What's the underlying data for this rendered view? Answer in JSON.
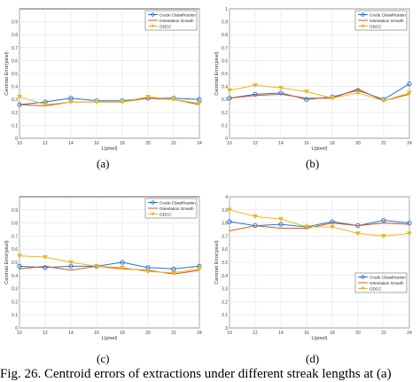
{
  "caption": "Fig. 26.  Centroid errors of extractions under different streak lengths at (a)",
  "chart_data": [
    {
      "type": "line",
      "label": "(a)",
      "xlabel": "L(pixel)",
      "ylabel": "Centroid Error(pixel)",
      "x": [
        10,
        12,
        14,
        16,
        18,
        20,
        22,
        24
      ],
      "xticks": [
        "10",
        "12",
        "14",
        "16",
        "18",
        "20",
        "22",
        "24"
      ],
      "ylim": [
        0,
        1
      ],
      "yticks": [
        "0",
        "0.1",
        "0.2",
        "0.3",
        "0.4",
        "0.5",
        "0.6",
        "0.7",
        "0.8",
        "0.9"
      ],
      "series": [
        {
          "name": "Crude Classification",
          "color": "#1f77d4",
          "marker": "circle",
          "values": [
            0.26,
            0.28,
            0.31,
            0.29,
            0.29,
            0.31,
            0.31,
            0.3
          ]
        },
        {
          "name": "Orientation Growth",
          "color": "#d9541a",
          "marker": "none",
          "values": [
            0.26,
            0.25,
            0.28,
            0.28,
            0.28,
            0.31,
            0.3,
            0.26
          ]
        },
        {
          "name": "ODCC",
          "color": "#e8b820",
          "marker": "triangle",
          "values": [
            0.32,
            0.26,
            0.28,
            0.28,
            0.28,
            0.32,
            0.3,
            0.27
          ]
        }
      ],
      "legend": "top-right"
    },
    {
      "type": "line",
      "label": "(b)",
      "xlabel": "L(pixel)",
      "ylabel": "Centroid Error(pixel)",
      "x": [
        10,
        12,
        14,
        16,
        18,
        20,
        22,
        24
      ],
      "xticks": [
        "10",
        "12",
        "14",
        "16",
        "18",
        "20",
        "22",
        "24"
      ],
      "ylim": [
        0,
        1
      ],
      "yticks": [
        "0",
        "0.1",
        "0.2",
        "0.3",
        "0.4",
        "0.5",
        "0.6",
        "0.7",
        "0.8",
        "0.9",
        "1"
      ],
      "series": [
        {
          "name": "Crude Classification",
          "color": "#1f77d4",
          "marker": "circle",
          "values": [
            0.31,
            0.34,
            0.35,
            0.3,
            0.32,
            0.37,
            0.3,
            0.42
          ]
        },
        {
          "name": "Orientation Growth",
          "color": "#d9541a",
          "marker": "none",
          "values": [
            0.31,
            0.33,
            0.34,
            0.31,
            0.31,
            0.38,
            0.29,
            0.34
          ]
        },
        {
          "name": "ODCC",
          "color": "#e8b820",
          "marker": "triangle",
          "values": [
            0.37,
            0.41,
            0.39,
            0.36,
            0.31,
            0.35,
            0.29,
            0.35
          ]
        }
      ],
      "legend": "top-right"
    },
    {
      "type": "line",
      "label": "(c)",
      "xlabel": "L(pixel)",
      "ylabel": "Centroid Error(pixel)",
      "x": [
        10,
        12,
        14,
        16,
        18,
        20,
        22,
        24
      ],
      "xticks": [
        "10",
        "12",
        "14",
        "16",
        "18",
        "20",
        "22",
        "24"
      ],
      "ylim": [
        0,
        1
      ],
      "yticks": [
        "0",
        "0.1",
        "0.2",
        "0.3",
        "0.4",
        "0.5",
        "0.6",
        "0.7",
        "0.8",
        "0.9"
      ],
      "series": [
        {
          "name": "Crude Classification",
          "color": "#1f77d4",
          "marker": "circle",
          "values": [
            0.47,
            0.46,
            0.47,
            0.47,
            0.5,
            0.46,
            0.45,
            0.47
          ]
        },
        {
          "name": "Orientation Growth",
          "color": "#d9541a",
          "marker": "none",
          "values": [
            0.45,
            0.47,
            0.44,
            0.47,
            0.45,
            0.44,
            0.41,
            0.44
          ]
        },
        {
          "name": "ODCC",
          "color": "#e8b820",
          "marker": "triangle",
          "values": [
            0.55,
            0.54,
            0.5,
            0.47,
            0.46,
            0.43,
            0.42,
            0.45
          ]
        }
      ],
      "legend": "top-right"
    },
    {
      "type": "line",
      "label": "(d)",
      "xlabel": "L(pixel)",
      "ylabel": "Centroid Error(pixel)",
      "x": [
        10,
        12,
        14,
        16,
        18,
        20,
        22,
        24
      ],
      "xticks": [
        "10",
        "12",
        "14",
        "16",
        "18",
        "20",
        "22",
        "24"
      ],
      "ylim": [
        3,
        4
      ],
      "yticks": [
        "3",
        "3.1",
        "3.2",
        "3.3",
        "3.4",
        "3.5",
        "3.6",
        "3.7",
        "3.8",
        "3.9",
        "4"
      ],
      "series": [
        {
          "name": "Crude Classification",
          "color": "#1f77d4",
          "marker": "circle",
          "values": [
            3.81,
            3.78,
            3.79,
            3.77,
            3.81,
            3.78,
            3.82,
            3.8
          ]
        },
        {
          "name": "Orientation Growth",
          "color": "#d9541a",
          "marker": "none",
          "values": [
            3.74,
            3.78,
            3.76,
            3.76,
            3.8,
            3.78,
            3.8,
            3.79
          ]
        },
        {
          "name": "ODCC",
          "color": "#e8b820",
          "marker": "triangle",
          "values": [
            3.9,
            3.85,
            3.83,
            3.77,
            3.77,
            3.72,
            3.7,
            3.72
          ]
        }
      ],
      "legend": "bottom-right"
    }
  ]
}
